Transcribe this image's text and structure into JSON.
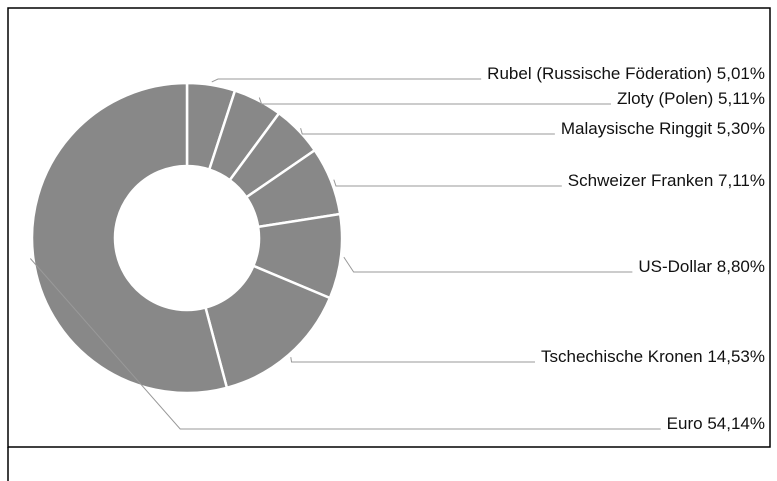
{
  "chart_data": {
    "type": "donut",
    "categories": [
      "Rubel (Russische Föderation)",
      "Zloty (Polen)",
      "Malaysische Ringgit",
      "Schweizer Franken",
      "US-Dollar",
      "Tschechische Kronen",
      "Euro"
    ],
    "values": [
      5.01,
      5.11,
      5.3,
      7.11,
      8.8,
      14.53,
      54.14
    ],
    "value_labels": [
      "5,01%",
      "5,11%",
      "5,30%",
      "7,11%",
      "8,80%",
      "14,53%",
      "54,14%"
    ],
    "color": "#888888"
  }
}
